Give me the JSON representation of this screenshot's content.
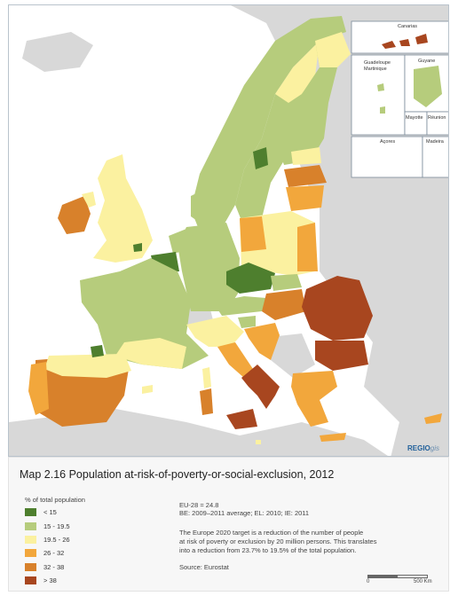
{
  "map": {
    "insets": {
      "canarias": "Canarias",
      "guadeloupe": "Guadeloupe",
      "martinique": "Martinique",
      "guyane": "Guyane",
      "mayotte": "Mayotte",
      "reunion": "Réunion",
      "acores": "Açores",
      "madeira": "Madeira"
    },
    "logo_main": "REGIO",
    "logo_suffix": "gis",
    "classes": [
      {
        "label": "< 15",
        "color": "#4e7f2e"
      },
      {
        "label": "15 - 19.5",
        "color": "#b6cc7c"
      },
      {
        "label": "19.5 - 26",
        "color": "#fbf1a0"
      },
      {
        "label": "26 - 32",
        "color": "#f2a73c"
      },
      {
        "label": "32 - 38",
        "color": "#d8812b"
      },
      {
        "label": "> 38",
        "color": "#a8461f"
      }
    ],
    "no_data_color": "#d8d8d8",
    "sea_color": "#ffffff"
  },
  "caption": {
    "title": "Map 2.16 Population at-risk-of-poverty-or-social-exclusion, 2012",
    "legend_title": "% of total population",
    "notes": [
      "EU-28 = 24.8",
      "BE: 2009–2011 average; EL: 2010; IE: 2011",
      "The Europe 2020 target is a reduction of the number of people",
      "at risk of poverty or exclusion by 20 million persons. This translates",
      "into a reduction from 23.7% to 19.5% of the total population.",
      "Source: Eurostat"
    ],
    "scale_start": "0",
    "scale_end": "500 Km"
  }
}
